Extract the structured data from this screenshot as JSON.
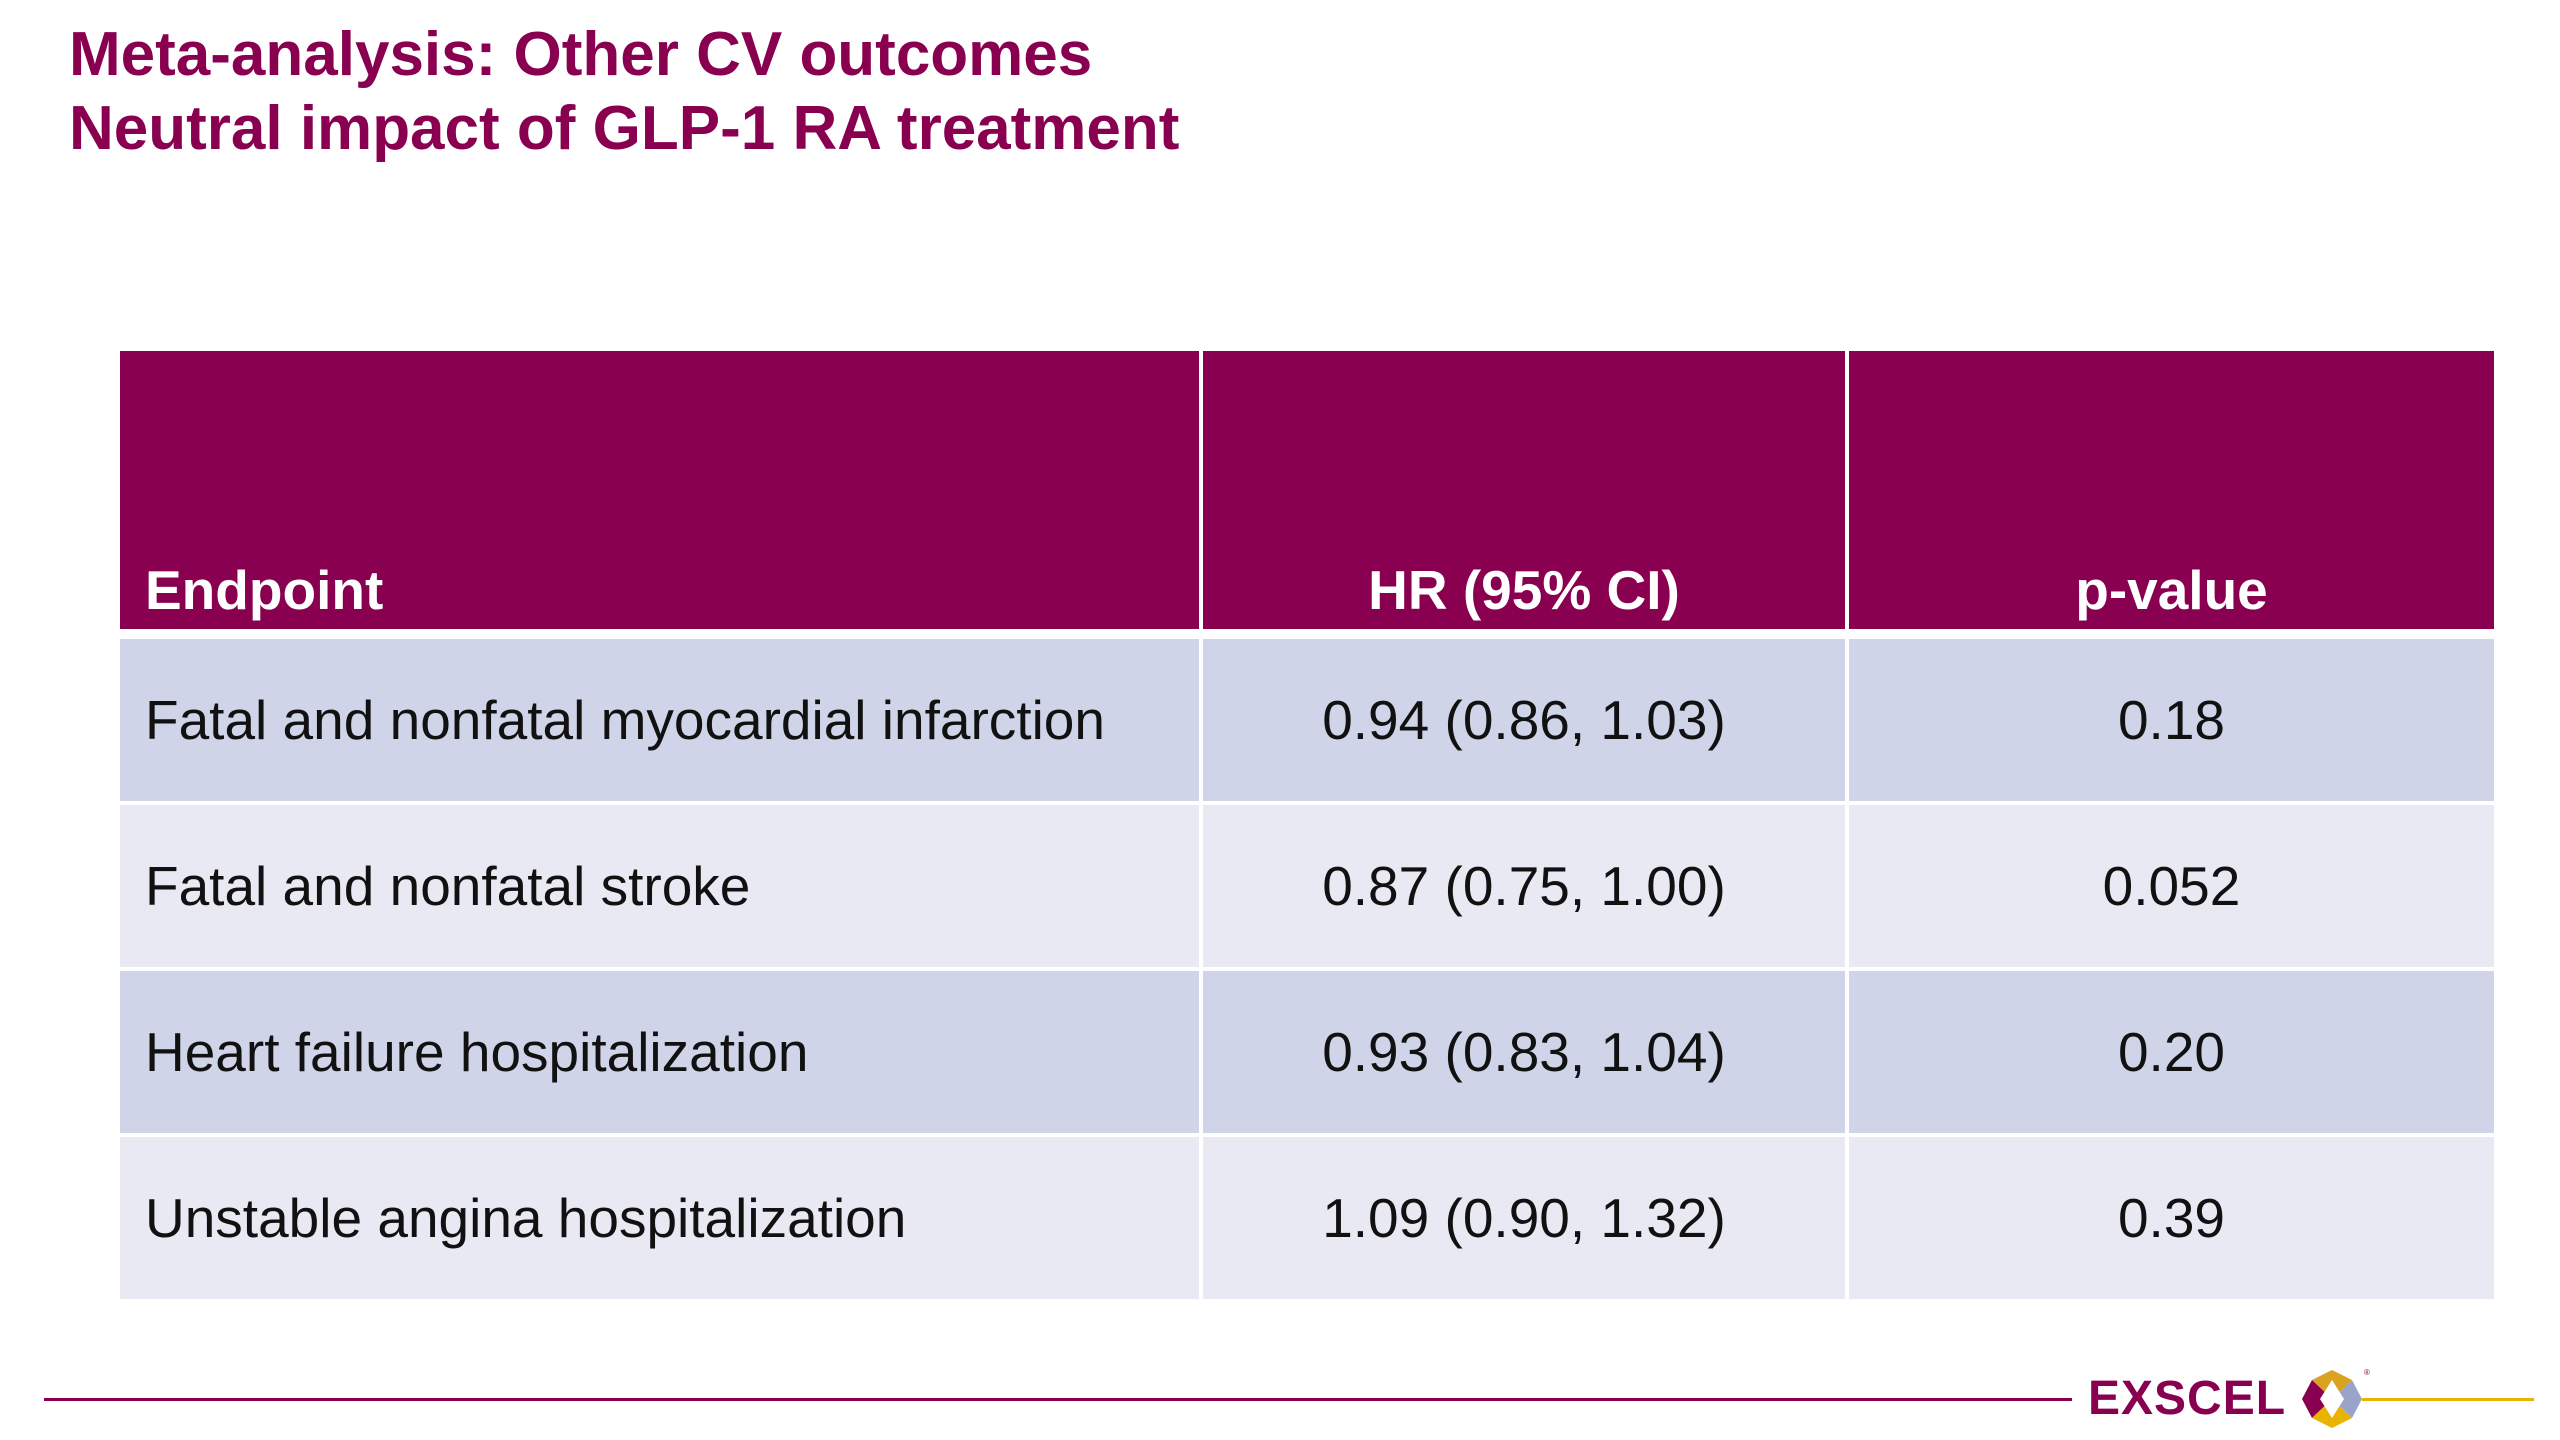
{
  "title": {
    "line1": "Meta-analysis: Other CV outcomes",
    "line2": "Neutral impact of GLP-1 RA treatment"
  },
  "table": {
    "headers": [
      "Endpoint",
      "HR (95% CI)",
      "p-value"
    ],
    "rows": [
      [
        "Fatal and nonfatal myocardial infarction",
        "0.94 (0.86, 1.03)",
        "0.18"
      ],
      [
        "Fatal and nonfatal stroke",
        "0.87 (0.75, 1.00)",
        "0.052"
      ],
      [
        "Heart failure hospitalization",
        "0.93 (0.83, 1.04)",
        "0.20"
      ],
      [
        "Unstable angina hospitalization",
        "1.09 (0.90, 1.32)",
        "0.39"
      ]
    ]
  },
  "footer": {
    "logo_text": "EXSCEL",
    "logo_icon": "exscel-logo-icon"
  },
  "colors": {
    "brand": "#8a0050",
    "row_odd": "#cfd4e8",
    "row_even": "#e8e9f3",
    "accent_line": "#e8b400"
  }
}
